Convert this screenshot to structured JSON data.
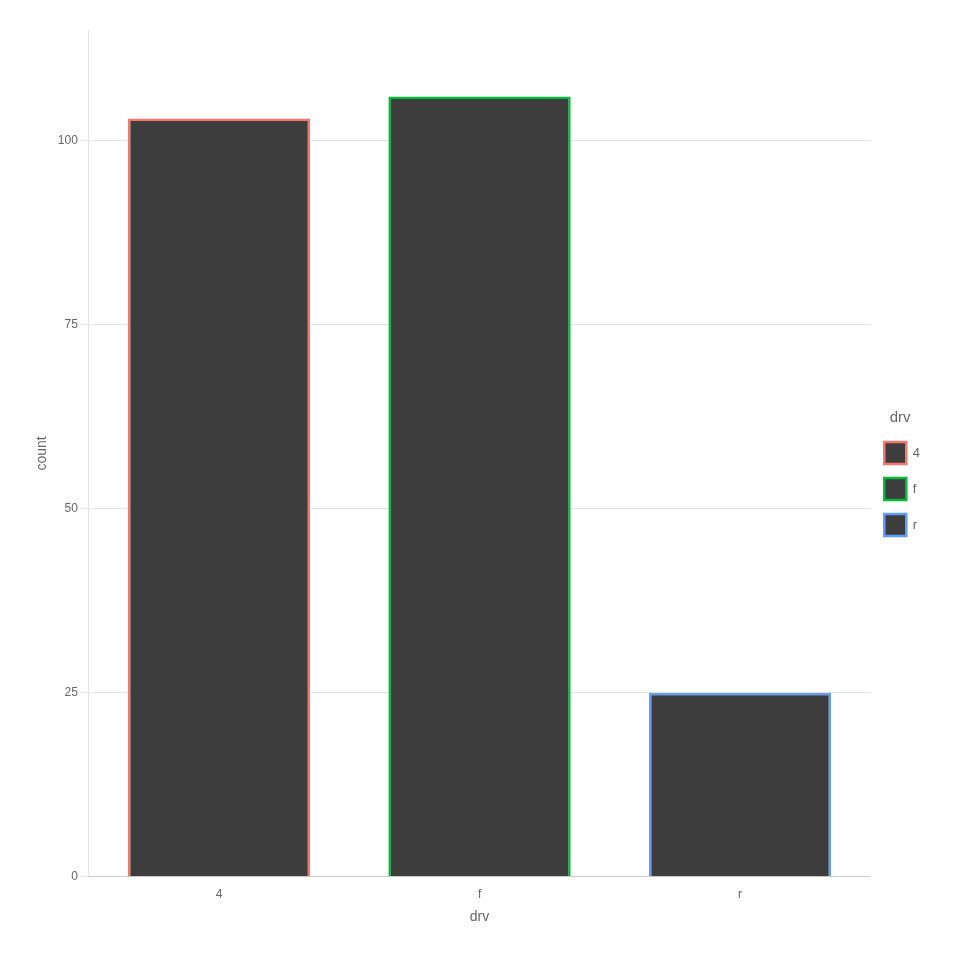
{
  "chart_data": {
    "type": "bar",
    "categories": [
      "4",
      "f",
      "r"
    ],
    "values": [
      103,
      106,
      25
    ],
    "color": "#3d3d3d",
    "colors": [
      "#F8766D",
      "#00BA38",
      "#619CFF"
    ],
    "xlabel": "drv",
    "ylabel": "count",
    "legend_title": "drv",
    "legend": "right",
    "ylim": [
      0,
      115
    ],
    "yticks": [
      0,
      25,
      50,
      75,
      100
    ],
    "grid": true
  }
}
